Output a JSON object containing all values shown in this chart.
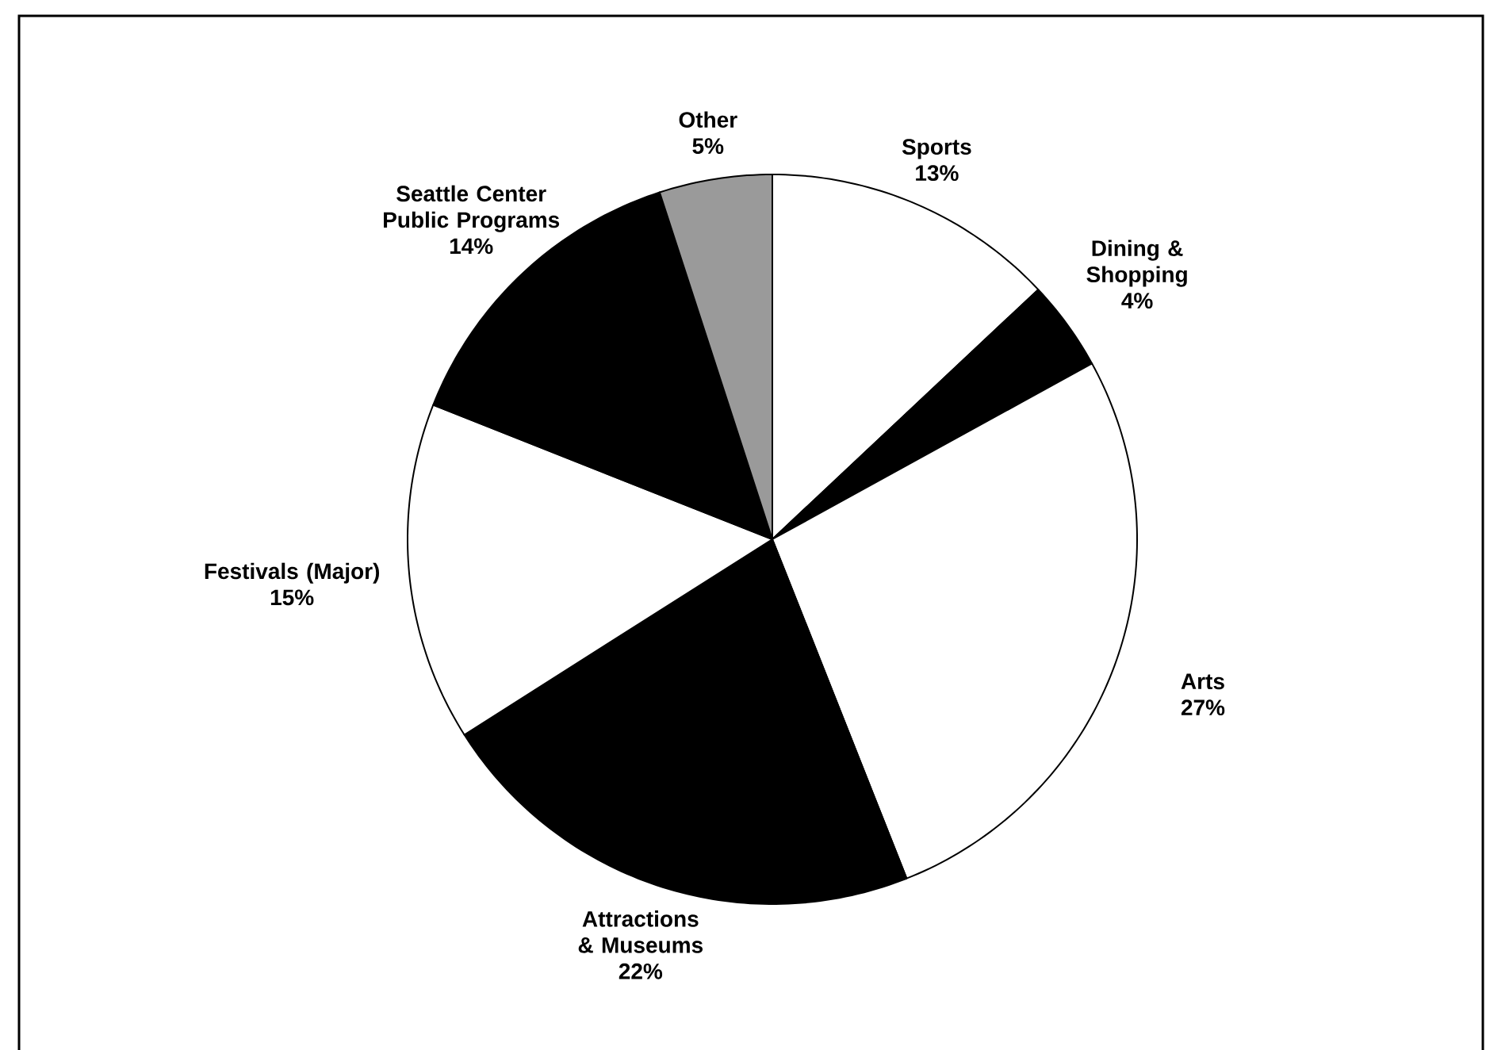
{
  "chart_data": {
    "type": "pie",
    "categories": [
      "Sports",
      "Dining & Shopping",
      "Arts",
      "Attractions & Museums",
      "Festivals (Major)",
      "Seattle Center Public Programs",
      "Other"
    ],
    "values": [
      13,
      4,
      27,
      22,
      15,
      14,
      5
    ],
    "value_labels": [
      "13%",
      "4%",
      "27%",
      "22%",
      "15%",
      "14%",
      "5%"
    ],
    "colors": [
      "#ffffff",
      "#000000",
      "#ffffff",
      "#000000",
      "#ffffff",
      "#000000",
      "#9a9a9a"
    ]
  }
}
